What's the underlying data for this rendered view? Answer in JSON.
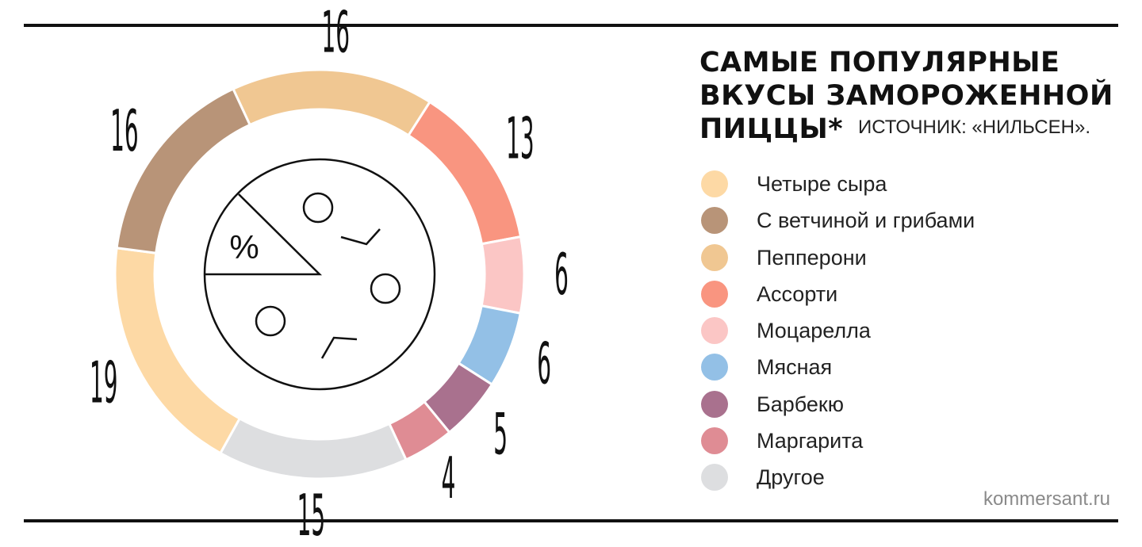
{
  "title": {
    "lines": [
      "САМЫЕ ПОПУЛЯРНЫЕ",
      "ВКУСЫ ЗАМОРОЖЕННОЙ",
      "ПИЦЦЫ*"
    ],
    "source": "ИСТОЧНИК: «НИЛЬСЕН»."
  },
  "center_label": "%",
  "credit": "kommersant.ru",
  "chart_data": {
    "type": "pie",
    "title": "САМЫЕ ПОПУЛЯРНЫЕ ВКУСЫ ЗАМОРОЖЕННОЙ ПИЦЦЫ*",
    "unit": "%",
    "categories": [
      "Пепперони",
      "Ассорти",
      "Моцарелла",
      "Мясная",
      "Барбекю",
      "Маргарита",
      "Другое",
      "Четыре сыра",
      "С ветчиной и грибами"
    ],
    "values": [
      16,
      13,
      6,
      6,
      5,
      4,
      15,
      19,
      16
    ],
    "colors": [
      "#F0C792",
      "#F99580",
      "#FBC6C5",
      "#93C0E6",
      "#A9718E",
      "#DF8C94",
      "#DDDEE0",
      "#FDD9A5",
      "#B89478"
    ],
    "legend": [
      {
        "label": "Четыре сыра",
        "color": "#FDD9A5"
      },
      {
        "label": "С ветчиной и грибами",
        "color": "#B89478"
      },
      {
        "label": "Пепперони",
        "color": "#F0C792"
      },
      {
        "label": "Ассорти",
        "color": "#F99580"
      },
      {
        "label": "Моцарелла",
        "color": "#FBC6C5"
      },
      {
        "label": "Мясная",
        "color": "#93C0E6"
      },
      {
        "label": "Барбекю",
        "color": "#A9718E"
      },
      {
        "label": "Маргарита",
        "color": "#DF8C94"
      },
      {
        "label": "Другое",
        "color": "#DDDEE0"
      }
    ],
    "legend_position": "right"
  }
}
